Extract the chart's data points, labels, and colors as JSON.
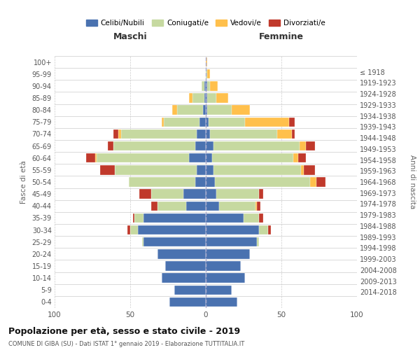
{
  "age_groups_bottom_to_top": [
    "0-4",
    "5-9",
    "10-14",
    "15-19",
    "20-24",
    "25-29",
    "30-34",
    "35-39",
    "40-44",
    "45-49",
    "50-54",
    "55-59",
    "60-64",
    "65-69",
    "70-74",
    "75-79",
    "80-84",
    "85-89",
    "90-94",
    "95-99",
    "100+"
  ],
  "birth_years_bottom_to_top": [
    "2014-2018",
    "2009-2013",
    "2004-2008",
    "1999-2003",
    "1994-1998",
    "1989-1993",
    "1984-1988",
    "1979-1983",
    "1974-1978",
    "1969-1973",
    "1964-1968",
    "1959-1963",
    "1954-1958",
    "1949-1953",
    "1944-1948",
    "1939-1943",
    "1934-1938",
    "1929-1933",
    "1924-1928",
    "1919-1923",
    "≤ 1918"
  ],
  "males": {
    "celibi": [
      24,
      21,
      29,
      27,
      32,
      41,
      45,
      41,
      13,
      15,
      7,
      6,
      11,
      7,
      6,
      4,
      2,
      1,
      1,
      0,
      0
    ],
    "coniugati": [
      0,
      0,
      0,
      0,
      0,
      1,
      5,
      6,
      19,
      21,
      44,
      54,
      61,
      54,
      50,
      24,
      17,
      8,
      2,
      0,
      0
    ],
    "vedovi": [
      0,
      0,
      0,
      0,
      0,
      0,
      0,
      0,
      0,
      0,
      0,
      0,
      1,
      0,
      2,
      1,
      3,
      2,
      0,
      0,
      0
    ],
    "divorziati": [
      0,
      0,
      0,
      0,
      0,
      0,
      2,
      1,
      4,
      8,
      0,
      10,
      6,
      4,
      3,
      0,
      0,
      0,
      0,
      0,
      0
    ]
  },
  "females": {
    "celibi": [
      21,
      17,
      26,
      23,
      29,
      34,
      35,
      25,
      9,
      7,
      6,
      5,
      4,
      5,
      3,
      2,
      1,
      1,
      1,
      0,
      0
    ],
    "coniugati": [
      0,
      0,
      0,
      0,
      0,
      1,
      6,
      10,
      24,
      28,
      63,
      58,
      54,
      57,
      44,
      24,
      16,
      6,
      2,
      1,
      0
    ],
    "vedovi": [
      0,
      0,
      0,
      0,
      0,
      0,
      0,
      0,
      1,
      0,
      4,
      2,
      3,
      4,
      10,
      29,
      12,
      8,
      5,
      2,
      1
    ],
    "divorziati": [
      0,
      0,
      0,
      0,
      0,
      0,
      2,
      3,
      2,
      3,
      6,
      7,
      5,
      6,
      2,
      4,
      0,
      0,
      0,
      0,
      0
    ]
  },
  "colors": {
    "celibi": "#4a72b0",
    "coniugati": "#c6d9a0",
    "vedovi": "#ffc04c",
    "divorziati": "#c0392b"
  },
  "xlim": 100,
  "title": "Popolazione per età, sesso e stato civile - 2019",
  "subtitle": "COMUNE DI GIBA (SU) - Dati ISTAT 1° gennaio 2019 - Elaborazione TUTTITALIA.IT",
  "bg_color": "#ffffff",
  "grid_color": "#cccccc",
  "legend_labels": [
    "Celibi/Nubili",
    "Coniugati/e",
    "Vedovi/e",
    "Divorziati/e"
  ]
}
